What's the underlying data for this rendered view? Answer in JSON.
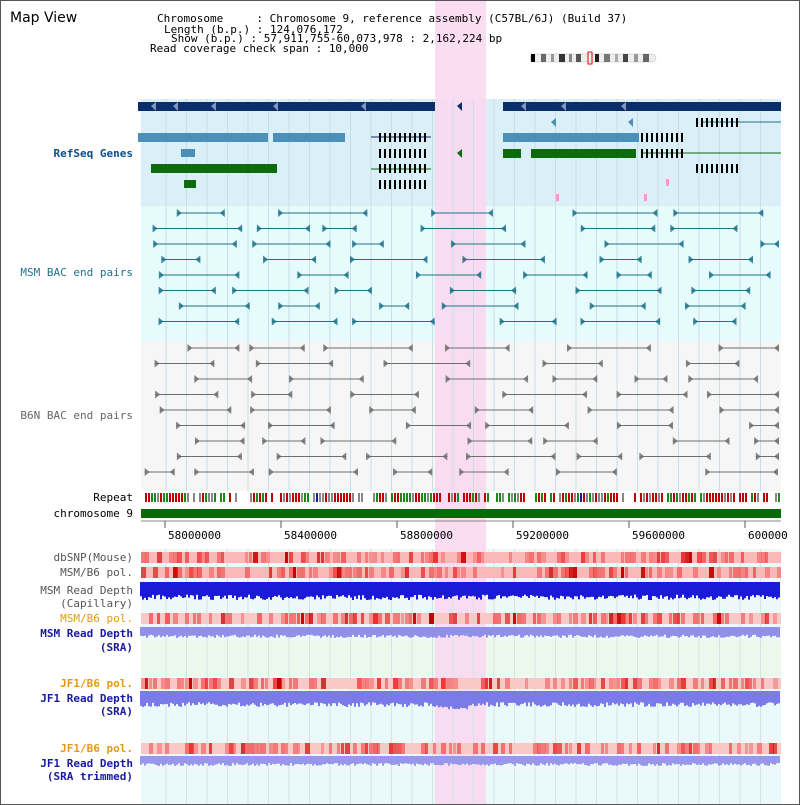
{
  "title": "Map View",
  "info": {
    "chr_key": "Chromosome     : ",
    "chr_val": "Chromosome 9, reference assembly (C57BL/6J) (Build 37)",
    "len_key": "Length (b.p.) : ",
    "len_val": "124,076,172",
    "show_key": "Show (b.p.) : ",
    "show_val": "57,911,755-60,073,978 : 2,162,224 bp",
    "span_key": "Read coverage check span : ",
    "span_val": "10,000"
  },
  "tracks": {
    "refseq": "RefSeq Genes",
    "msm_bac": "MSM BAC end pairs",
    "b6n_bac": "B6N BAC end pairs",
    "repeat": "Repeat",
    "chromosome": "chromosome 9",
    "dbsnp": "dbSNP(Mouse)",
    "msm_pol": "MSM/B6 pol.",
    "msm_depth_cap_1": "MSM Read Depth",
    "msm_depth_cap_2": "(Capillary)",
    "msm_pol2": "MSM/B6 pol.",
    "msm_depth_sra_1": "MSM Read Depth",
    "msm_depth_sra_2": "(SRA)",
    "jf1_pol": "JF1/B6 pol.",
    "jf1_depth_1": "JF1 Read Depth",
    "jf1_depth_2": "(SRA)",
    "jf1_pol2": "JF1/B6 pol.",
    "jf1_trim_1": "JF1 Read Depth",
    "jf1_trim_2": "(SRA trimmed)"
  },
  "axis": {
    "ticks": [
      "58000000",
      "58400000",
      "58800000",
      "59200000",
      "59600000",
      "600000"
    ]
  },
  "colors": {
    "refseq_bg": "#dbeff9",
    "msm_bg": "#e6fbfb",
    "b6n_bg": "#f6f6f6",
    "highlight": "#fad7f0",
    "navy": "#0b2e6a",
    "steel": "#4a90b8",
    "green": "#0d6b0d",
    "teal": "#1d7389",
    "gray": "#6e6e6e",
    "chromosome": "#0a6a0a",
    "msm_label": "#0b4d8a",
    "orange_label": "#e39a16",
    "blue_label": "#1a1aa0"
  }
}
